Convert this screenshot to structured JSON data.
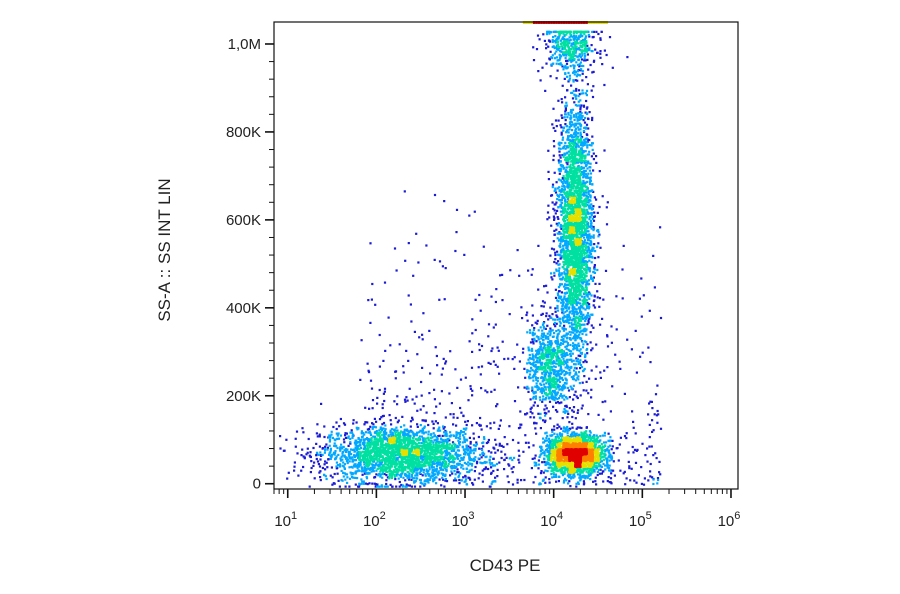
{
  "chart_data": {
    "type": "scatter",
    "style": "density-colored flow cytometry dot plot",
    "title": "",
    "xlabel": "CD43 PE",
    "ylabel": "SS-A :: SS INT LIN",
    "x_scale": "log",
    "y_scale": "linear",
    "xlim": [
      7,
      1200000
    ],
    "ylim": [
      -12000,
      1050000
    ],
    "x_ticks": [
      {
        "value": 10,
        "base": "10",
        "exp": "1"
      },
      {
        "value": 100,
        "base": "10",
        "exp": "2"
      },
      {
        "value": 1000,
        "base": "10",
        "exp": "3"
      },
      {
        "value": 10000,
        "base": "10",
        "exp": "4"
      },
      {
        "value": 100000,
        "base": "10",
        "exp": "5"
      },
      {
        "value": 1000000,
        "base": "10",
        "exp": "6"
      }
    ],
    "y_ticks": [
      {
        "value": 0,
        "label": "0"
      },
      {
        "value": 200000,
        "label": "200K"
      },
      {
        "value": 400000,
        "label": "400K"
      },
      {
        "value": 600000,
        "label": "600K"
      },
      {
        "value": 800000,
        "label": "800K"
      },
      {
        "value": 1000000,
        "label": "1,0M"
      }
    ],
    "grid": false,
    "legend": "none",
    "colormap": [
      "#1b1bd6",
      "#00a8ff",
      "#00e0a0",
      "#e6e000",
      "#ff8000",
      "#e00000"
    ],
    "populations": [
      {
        "x_center": 180,
        "x_log_spread": 0.45,
        "y_center": 70000,
        "y_spread": 32000,
        "relative_events": 0.26
      },
      {
        "x_center": 17000,
        "x_log_spread": 0.16,
        "y_center": 70000,
        "y_spread": 22000,
        "relative_events": 0.24
      },
      {
        "x_center": 17000,
        "x_log_spread": 0.1,
        "y_center": 580000,
        "y_spread": 150000,
        "relative_events": 0.32
      },
      {
        "x_center": 8500,
        "x_log_spread": 0.12,
        "y_center": 270000,
        "y_spread": 55000,
        "relative_events": 0.08
      },
      {
        "x_center": 15000,
        "x_log_spread": 0.15,
        "y_center": 1000000,
        "y_spread": 30000,
        "relative_events": 0.05
      }
    ]
  }
}
